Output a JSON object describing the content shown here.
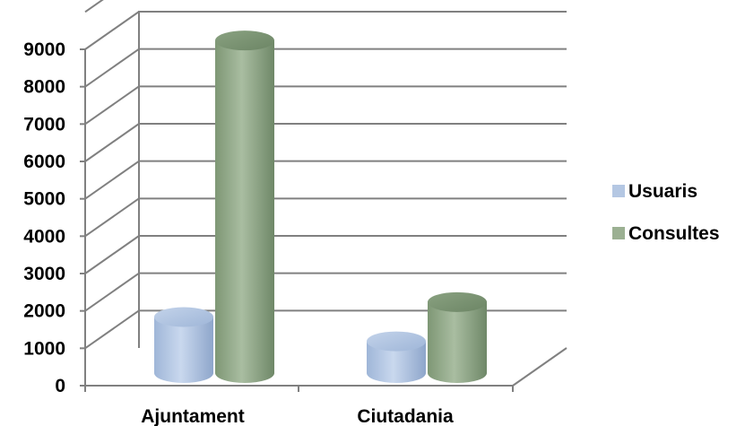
{
  "chart_data": {
    "type": "bar",
    "style": "3d-cylinder",
    "categories": [
      "Ajuntament",
      "Ciutadania"
    ],
    "series": [
      {
        "name": "Usuaris",
        "values": [
          1500,
          850
        ],
        "color": "#b4c7e3"
      },
      {
        "name": "Consultes",
        "values": [
          8900,
          1900
        ],
        "color": "#9bb092"
      }
    ],
    "y_ticks": [
      "0",
      "1000",
      "2000",
      "3000",
      "4000",
      "5000",
      "6000",
      "7000",
      "8000",
      "9000"
    ],
    "ylim": [
      0,
      9000
    ],
    "grid": true,
    "legend_position": "right"
  }
}
